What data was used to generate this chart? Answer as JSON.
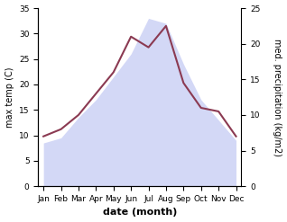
{
  "months": [
    "Jan",
    "Feb",
    "Mar",
    "Apr",
    "May",
    "Jun",
    "Jul",
    "Aug",
    "Sep",
    "Oct",
    "Nov",
    "Dec"
  ],
  "temperature": [
    8.5,
    9.5,
    13.5,
    17.0,
    21.5,
    26.0,
    33.0,
    32.0,
    24.0,
    17.0,
    13.0,
    9.0
  ],
  "precipitation": [
    7.0,
    8.0,
    10.0,
    13.0,
    16.0,
    21.0,
    19.5,
    22.5,
    14.5,
    11.0,
    10.5,
    7.0
  ],
  "fill_color": "#b0b8f0",
  "precip_line_color": "#8b3a52",
  "fill_alpha": 0.55,
  "temp_ylim": [
    0,
    35
  ],
  "precip_ylim": [
    0,
    25
  ],
  "temp_yticks": [
    0,
    5,
    10,
    15,
    20,
    25,
    30,
    35
  ],
  "precip_yticks": [
    0,
    5,
    10,
    15,
    20,
    25
  ],
  "xlabel": "date (month)",
  "ylabel_left": "max temp (C)",
  "ylabel_right": "med. precipitation (kg/m2)",
  "background_color": "#ffffff",
  "line_width": 1.5,
  "label_fontsize": 7,
  "tick_fontsize": 6.5
}
